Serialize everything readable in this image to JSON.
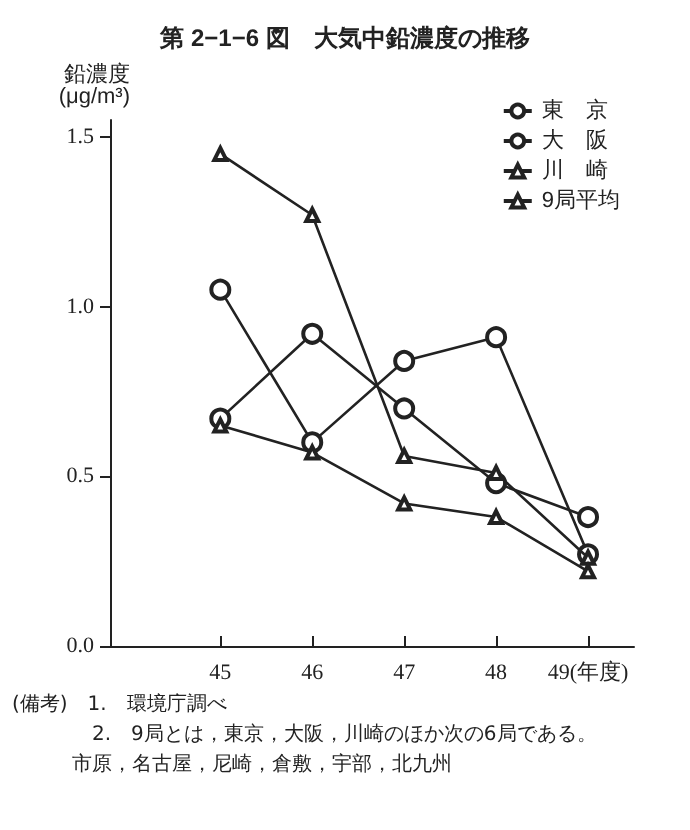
{
  "chart_data": {
    "type": "line",
    "title": "第 2−1−6 図　大気中鉛濃度の推移",
    "ylabel": "鉛濃度 (μg/m³)",
    "x": [
      45,
      46,
      47,
      48,
      49
    ],
    "series": [
      {
        "name": "東　京",
        "color": "#222222",
        "marker": "circle",
        "values": [
          0.67,
          0.92,
          0.7,
          0.48,
          0.38
        ]
      },
      {
        "name": "大　阪",
        "color": "#222222",
        "marker": "circle",
        "values": [
          1.05,
          0.6,
          0.84,
          0.91,
          0.27
        ]
      },
      {
        "name": "川　崎",
        "color": "#222222",
        "marker": "triangle",
        "values": [
          1.45,
          1.27,
          0.56,
          0.51,
          0.26
        ]
      },
      {
        "name": "9局平均",
        "color": "#222222",
        "marker": "triangle",
        "values": [
          0.65,
          0.57,
          0.42,
          0.38,
          0.22
        ]
      }
    ],
    "xlim": [
      43.8,
      49.5
    ],
    "xticks": [
      45,
      46,
      47,
      48,
      {
        "value": 49,
        "label": "49(年度)"
      }
    ],
    "ylim": [
      0,
      1.55
    ],
    "yticks": [
      {
        "value": 0,
        "label": "0.0"
      },
      {
        "value": 0.5,
        "label": "0.5"
      },
      {
        "value": 1,
        "label": "1.0"
      },
      {
        "value": 1.5,
        "label": "1.5"
      }
    ],
    "grid": false,
    "legend": "top right",
    "line_style": "solid",
    "annotations": [
      "(備考)　1.　環境庁調べ",
      "2.　9局とは，東京，大阪，川崎のほか次の6局である。",
      "市原，名古屋，尼崎，倉敷，宇部，北九州"
    ]
  }
}
